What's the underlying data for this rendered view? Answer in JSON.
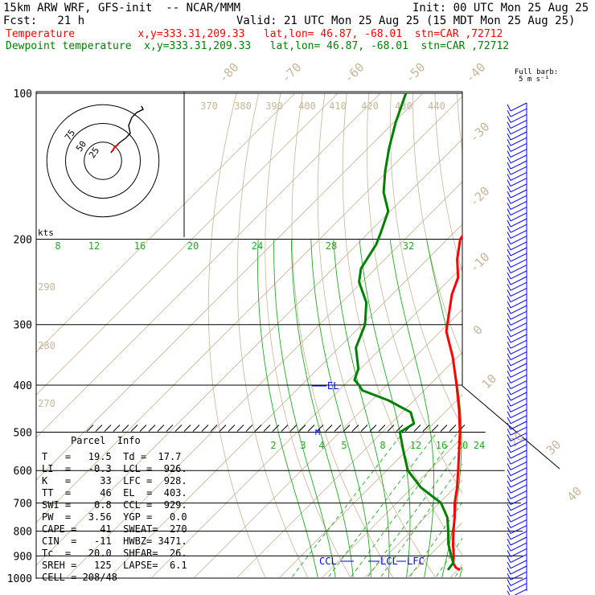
{
  "header": {
    "model": "15km ARW WRF, GFS-init  -- NCAR/MMM",
    "fcst": "Fcst:   21 h",
    "init": "Init: 00 UTC Mon 25 Aug 25",
    "valid": "Valid: 21 UTC Mon 25 Aug 25 (15 MDT Mon 25 Aug 25)",
    "temp_line": "Temperature          x,y=333.31,209.33   lat,lon= 46.87, -68.01  stn=CAR ,72712",
    "dew_line": "Dewpoint temperature  x,y=333.31,209.33   lat,lon= 46.87, -68.01  stn=CAR ,72712",
    "temp_color": "#ff0000",
    "dew_color": "#008000"
  },
  "barb_label": {
    "line1": "Full barb:",
    "line2": "5 m s⁻¹"
  },
  "hodograph": {
    "units": "kts",
    "ring_labels": [
      "75",
      "50",
      "25"
    ]
  },
  "pressure_labels": [
    "100",
    "200",
    "300",
    "400",
    "500",
    "600",
    "700",
    "800",
    "900",
    "1000"
  ],
  "isotherm_labels": [
    "-80",
    "-70",
    "-60",
    "-50",
    "-40",
    "-30",
    "-20",
    "-10",
    "0",
    "10",
    "20",
    "30",
    "40"
  ],
  "theta_labels": [
    "370",
    "380",
    "390",
    "400",
    "410",
    "420",
    "430",
    "440",
    "290",
    "280",
    "270"
  ],
  "mixratio_upper": [
    "8",
    "12",
    "16",
    "20",
    "24",
    "28",
    "32"
  ],
  "mixratio_lower": [
    "2",
    "3",
    "4",
    "5",
    "8",
    "12",
    "16",
    "20",
    "24"
  ],
  "level_markers": {
    "el": "EL",
    "ccl": "CCL",
    "lcl": "LCL",
    "lfc": "LFC"
  },
  "parcel_info": {
    "title": "Parcel  Info",
    "rows": [
      "T   =   19.5  Td =  17.7",
      "LI  =   -0.3  LCL =  926.",
      "K   =     33  LFC =  928.",
      "TT  =     46  EL  =  403.",
      "SWI =    0.8  CCL =  929.",
      "PW  =   3.56  YGP =   0.0",
      "CAPE =    41  SWEAT=  270",
      "CIN  =   -11  HWBZ= 3471.",
      "Tc  =   20.0  SHEAR=  26.",
      "SREH =   125  LAPSE=  6.1",
      "CELL = 208/48"
    ]
  },
  "chart_data": {
    "type": "line",
    "title": "",
    "xlabel": "",
    "ylabel": "",
    "y_scale": "log-pressure",
    "ylim": [
      1000,
      100
    ],
    "series": [
      {
        "name": "Temperature",
        "color": "#ff0000",
        "points": [
          {
            "p": 962,
            "t": 20.5
          },
          {
            "p": 950,
            "t": 18.9
          },
          {
            "p": 930,
            "t": 17.3
          },
          {
            "p": 900,
            "t": 15.8
          },
          {
            "p": 850,
            "t": 12.8
          },
          {
            "p": 800,
            "t": 9.9
          },
          {
            "p": 750,
            "t": 7.0
          },
          {
            "p": 700,
            "t": 3.6
          },
          {
            "p": 650,
            "t": 0.5
          },
          {
            "p": 600,
            "t": -3.2
          },
          {
            "p": 550,
            "t": -7.3
          },
          {
            "p": 500,
            "t": -11.8
          },
          {
            "p": 450,
            "t": -17.2
          },
          {
            "p": 400,
            "t": -23.6
          },
          {
            "p": 350,
            "t": -31.1
          },
          {
            "p": 310,
            "t": -38.6
          },
          {
            "p": 300,
            "t": -40.0
          },
          {
            "p": 260,
            "t": -46.0
          },
          {
            "p": 240,
            "t": -48.5
          },
          {
            "p": 220,
            "t": -53.0
          },
          {
            "p": 200,
            "t": -57.0
          },
          {
            "p": 180,
            "t": -58.6
          },
          {
            "p": 160,
            "t": -58.4
          },
          {
            "p": 140,
            "t": -57.5
          },
          {
            "p": 130,
            "t": -55.8
          },
          {
            "p": 120,
            "t": -54.0
          },
          {
            "p": 110,
            "t": -51.3
          },
          {
            "p": 100,
            "t": -50.5
          }
        ]
      },
      {
        "name": "Dewpoint temperature",
        "color": "#008000",
        "points": [
          {
            "p": 962,
            "t": 17.7
          },
          {
            "p": 930,
            "t": 17.3
          },
          {
            "p": 900,
            "t": 15.2
          },
          {
            "p": 850,
            "t": 11.7
          },
          {
            "p": 800,
            "t": 8.7
          },
          {
            "p": 750,
            "t": 5.3
          },
          {
            "p": 700,
            "t": 0.4
          },
          {
            "p": 650,
            "t": -8.0
          },
          {
            "p": 600,
            "t": -15.0
          },
          {
            "p": 550,
            "t": -20.3
          },
          {
            "p": 500,
            "t": -25.9
          },
          {
            "p": 480,
            "t": -24.6
          },
          {
            "p": 455,
            "t": -28.0
          },
          {
            "p": 430,
            "t": -36.0
          },
          {
            "p": 410,
            "t": -44.5
          },
          {
            "p": 400,
            "t": -46.5
          },
          {
            "p": 390,
            "t": -48.8
          },
          {
            "p": 370,
            "t": -50.5
          },
          {
            "p": 335,
            "t": -56.0
          },
          {
            "p": 300,
            "t": -59.3
          },
          {
            "p": 270,
            "t": -64.2
          },
          {
            "p": 245,
            "t": -70.7
          },
          {
            "p": 230,
            "t": -73.4
          },
          {
            "p": 205,
            "t": -75.5
          },
          {
            "p": 195,
            "t": -77.0
          },
          {
            "p": 175,
            "t": -80.5
          },
          {
            "p": 160,
            "t": -86.0
          },
          {
            "p": 145,
            "t": -90.5
          },
          {
            "p": 130,
            "t": -95.0
          },
          {
            "p": 115,
            "t": -99.5
          },
          {
            "p": 100,
            "t": -104.0
          }
        ]
      }
    ]
  }
}
